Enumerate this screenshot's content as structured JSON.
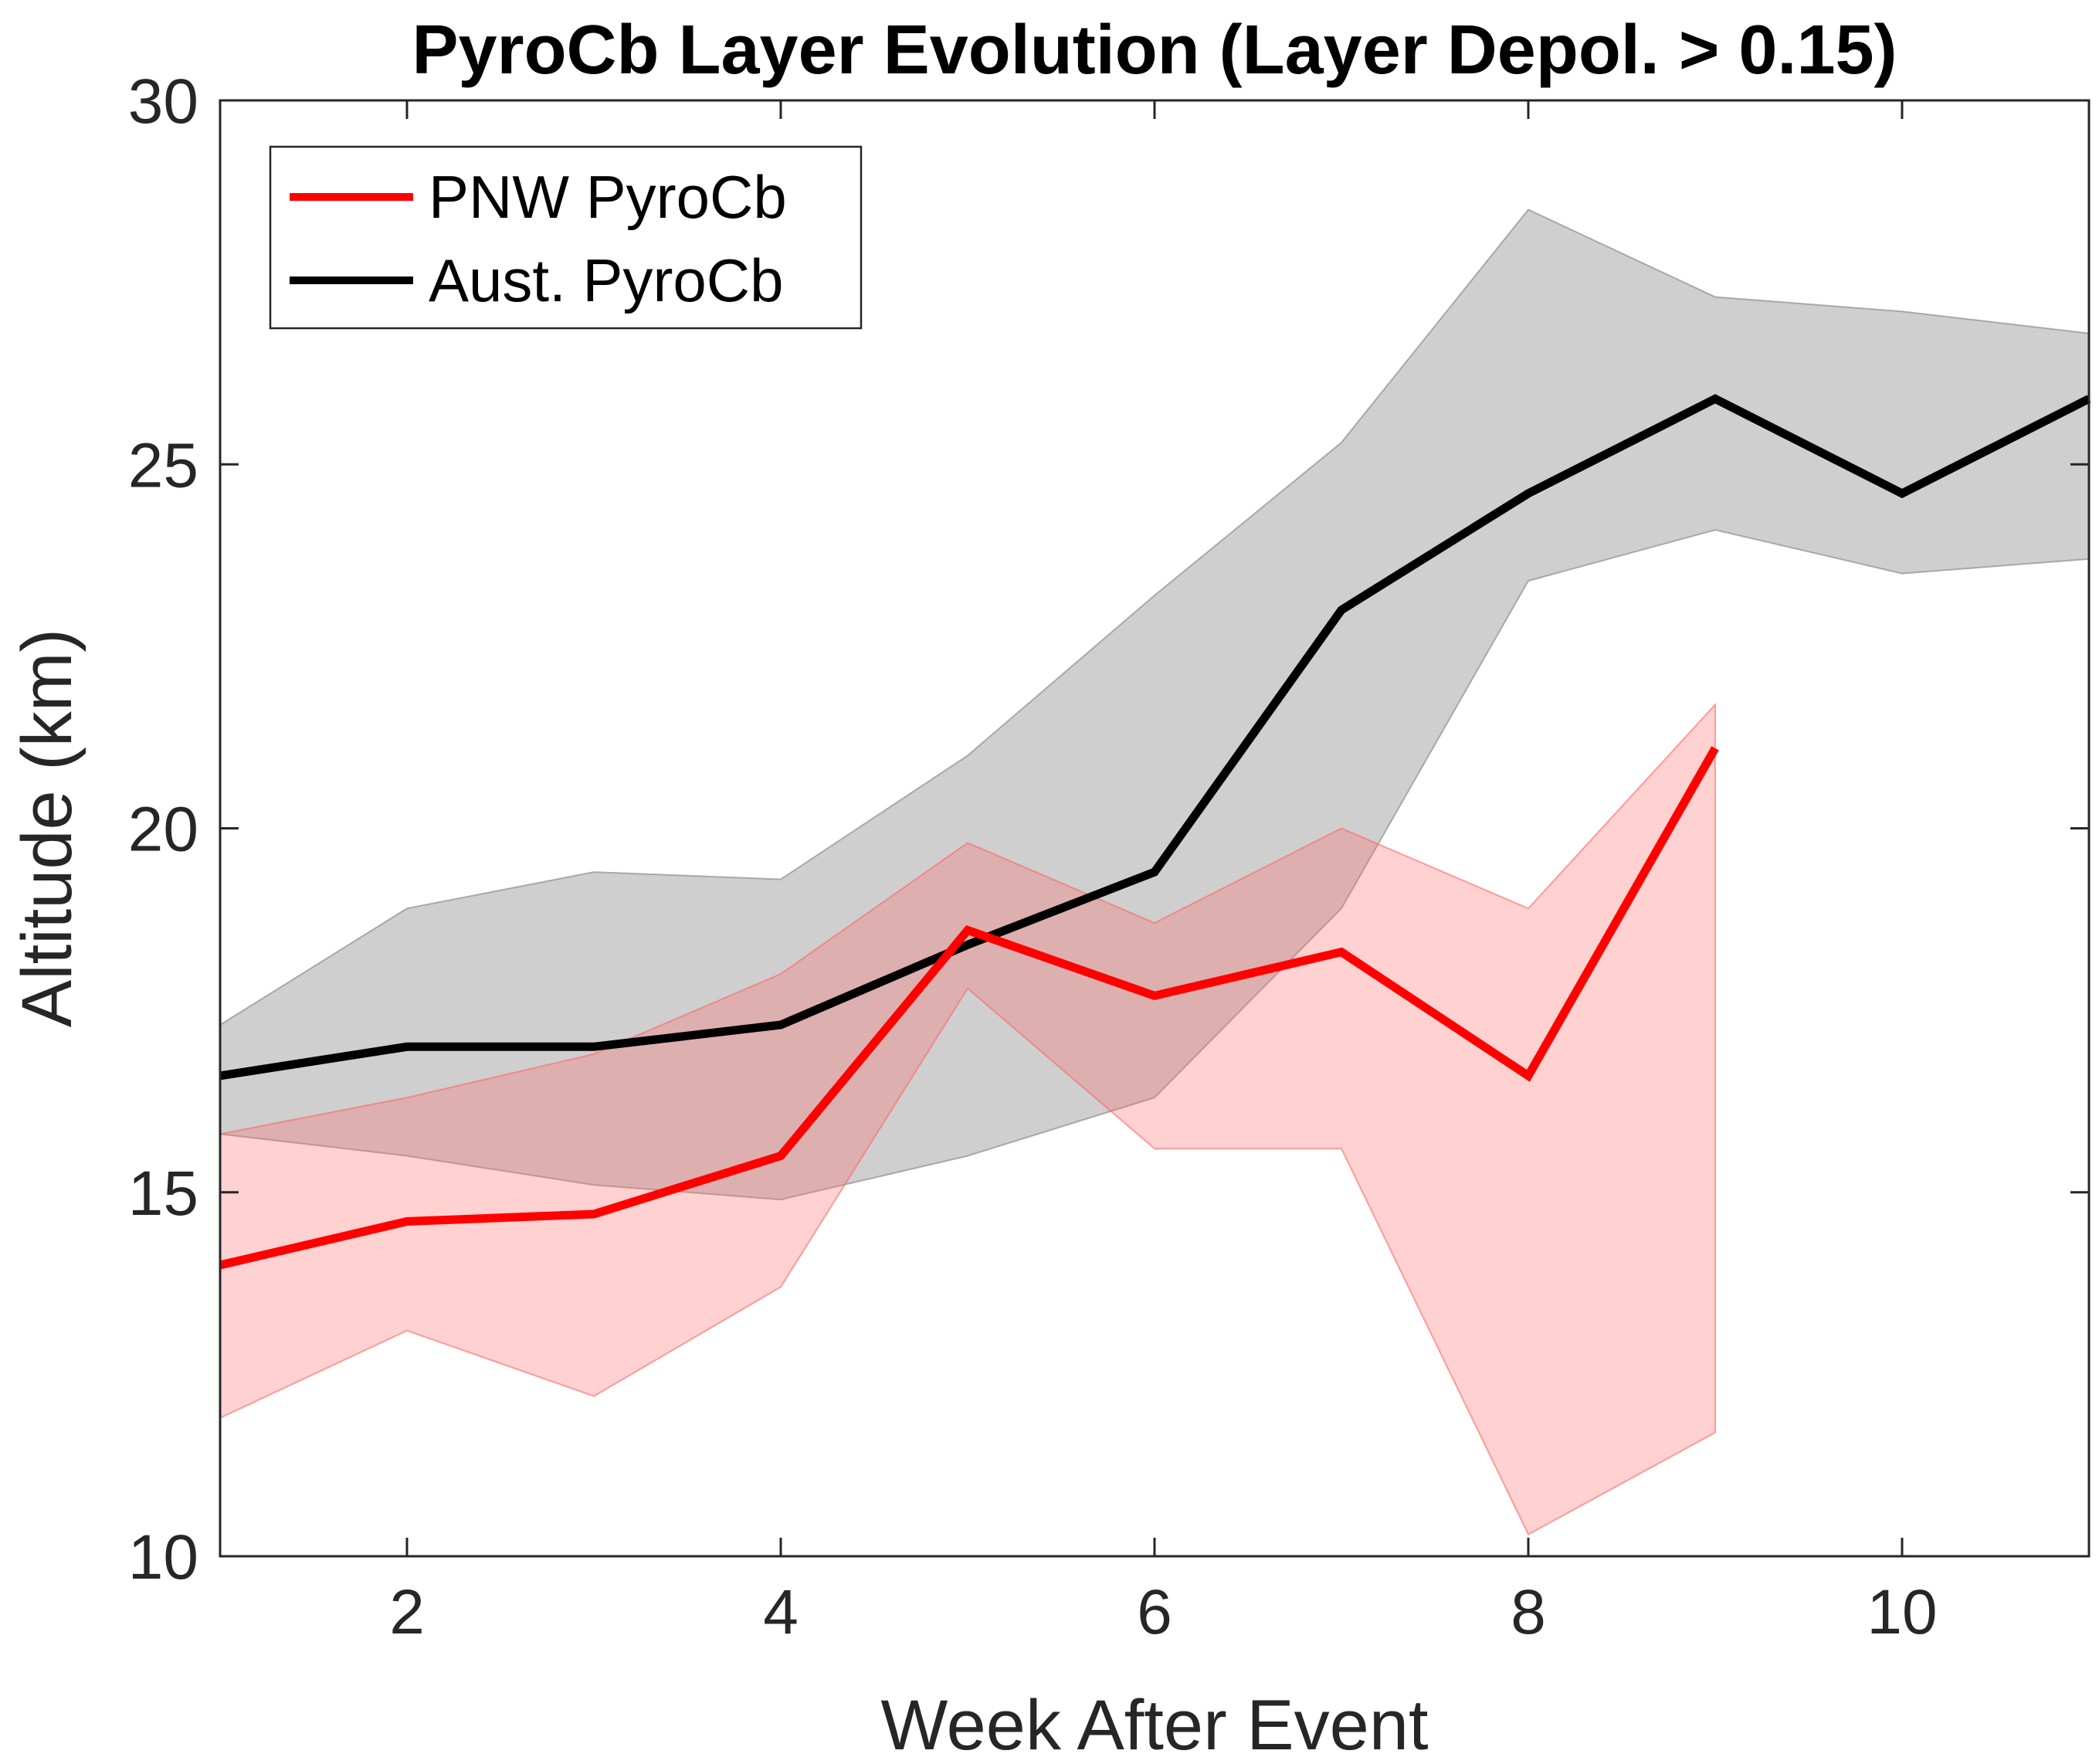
{
  "chart_data": {
    "type": "line",
    "title": "PyroCb Layer Evolution (Layer Depol. > 0.15)",
    "xlabel": "Week After Event",
    "ylabel": "Altitude (km)",
    "xlim": [
      1,
      11
    ],
    "ylim": [
      10,
      30
    ],
    "xticks": [
      2,
      4,
      6,
      8,
      10
    ],
    "yticks": [
      10,
      15,
      20,
      25,
      30
    ],
    "xtick_labels": [
      "2",
      "4",
      "6",
      "8",
      "10"
    ],
    "ytick_labels": [
      "10",
      "15",
      "20",
      "25",
      "30"
    ],
    "grid": false,
    "legend_location": "top-left",
    "series": [
      {
        "name": "Aust. PyroCb",
        "color": "#000000",
        "band_color": "#808080",
        "x": [
          1,
          2,
          3,
          4,
          5,
          6,
          7,
          8,
          9,
          10,
          11
        ],
        "values": [
          16.6,
          17.0,
          17.0,
          17.3,
          18.4,
          19.4,
          23.0,
          24.6,
          25.9,
          24.6,
          25.9
        ],
        "upper": [
          17.3,
          18.9,
          19.4,
          19.3,
          21.0,
          23.2,
          25.3,
          28.5,
          27.3,
          27.1,
          26.8
        ],
        "lower": [
          15.8,
          15.5,
          15.1,
          14.9,
          15.5,
          16.3,
          18.9,
          23.4,
          24.1,
          23.5,
          23.7
        ]
      },
      {
        "name": "PNW PyroCb",
        "color": "#ff0000",
        "band_color": "#ff6666",
        "x": [
          1,
          2,
          3,
          4,
          5,
          6,
          7,
          8,
          9
        ],
        "values": [
          14.0,
          14.6,
          14.7,
          15.5,
          18.6,
          17.7,
          18.3,
          16.6,
          21.1
        ],
        "upper": [
          15.8,
          16.3,
          16.9,
          18.0,
          19.8,
          18.7,
          20.0,
          18.9,
          21.7
        ],
        "lower": [
          11.9,
          13.1,
          12.2,
          13.7,
          17.8,
          15.6,
          15.6,
          10.3,
          11.7
        ]
      }
    ]
  }
}
